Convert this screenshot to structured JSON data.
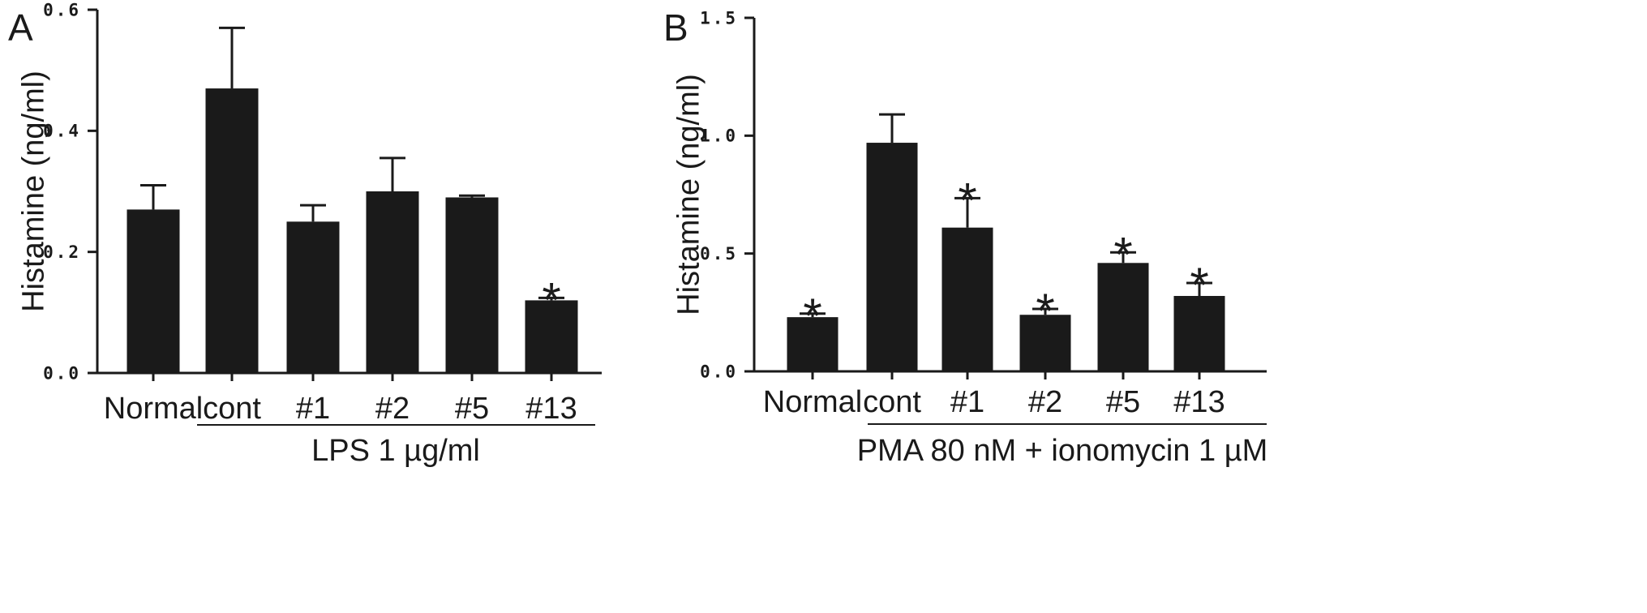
{
  "chart_data": [
    {
      "type": "bar",
      "panel": "A",
      "ylabel": "Histamine (ng/ml)",
      "ylim": [
        0.0,
        0.6
      ],
      "yticks": [
        "0.0",
        "0.2",
        "0.4",
        "0.6"
      ],
      "ytick_values": [
        0.0,
        0.2,
        0.4,
        0.6
      ],
      "categories": [
        "Normal",
        "cont",
        "#1",
        "#2",
        "#5",
        "#13"
      ],
      "values": [
        0.27,
        0.47,
        0.25,
        0.3,
        0.29,
        0.12
      ],
      "errors": [
        0.04,
        0.1,
        0.027,
        0.055,
        0.003,
        0.004
      ],
      "significant": [
        false,
        false,
        false,
        false,
        false,
        true
      ],
      "significance_marker": "*",
      "group_label": "LPS 1 µg/ml",
      "group_span": [
        1,
        5
      ],
      "bar_color": "#1a1a1a"
    },
    {
      "type": "bar",
      "panel": "B",
      "ylabel": "Histamine (ng/ml)",
      "ylim": [
        0.0,
        1.5
      ],
      "yticks": [
        "0.0",
        "0.5",
        "1.0",
        "1.5"
      ],
      "ytick_values": [
        0.0,
        0.5,
        1.0,
        1.5
      ],
      "categories": [
        "Normal",
        "cont",
        "#1",
        "#2",
        "#5",
        "#13"
      ],
      "values": [
        0.23,
        0.97,
        0.61,
        0.24,
        0.46,
        0.32
      ],
      "errors": [
        0.015,
        0.12,
        0.125,
        0.025,
        0.045,
        0.055
      ],
      "significant": [
        true,
        false,
        true,
        true,
        true,
        true
      ],
      "significance_marker": "*",
      "group_label": "PMA  80 nM + ionomycin 1 µM",
      "group_span": [
        1,
        5
      ],
      "bar_color": "#1a1a1a"
    }
  ]
}
